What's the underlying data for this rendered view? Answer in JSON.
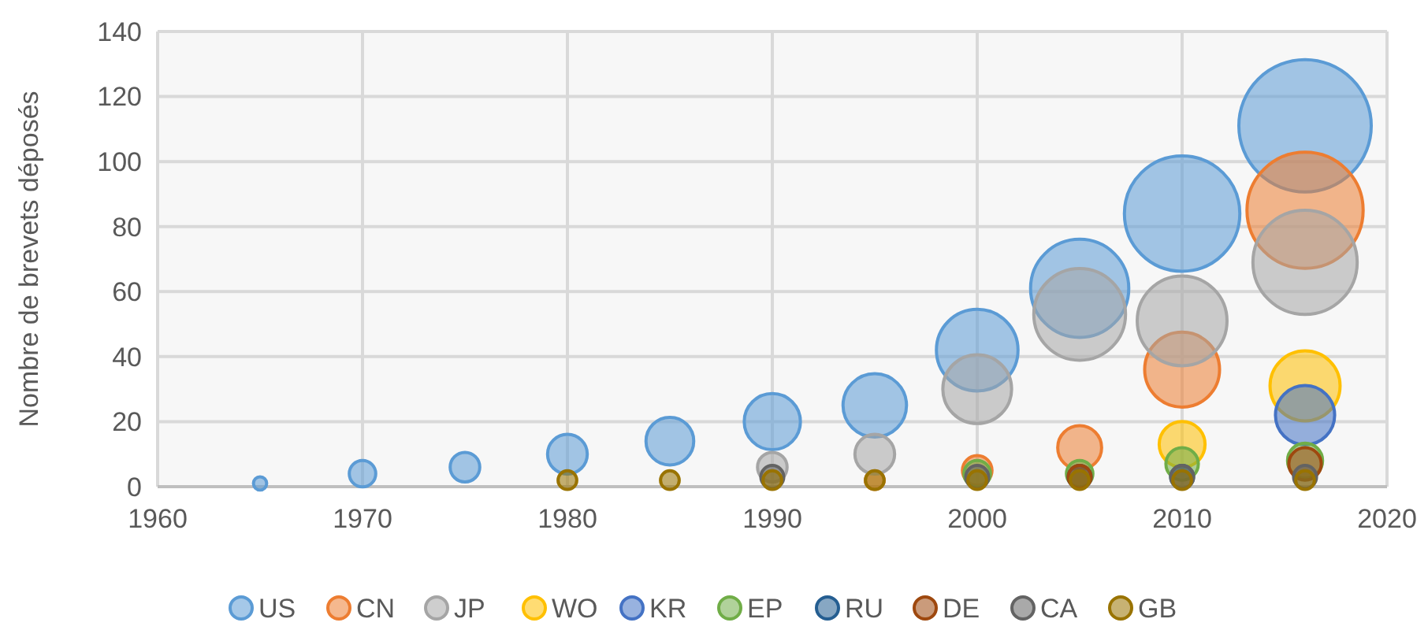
{
  "chart_data": {
    "type": "bubble",
    "ylabel": "Nombre de brevets déposés",
    "xlim": [
      1960,
      2020
    ],
    "xticks": [
      1960,
      1970,
      1980,
      1990,
      2000,
      2010,
      2020
    ],
    "ylim": [
      0,
      140
    ],
    "yticks": [
      0,
      20,
      40,
      60,
      80,
      100,
      120,
      140
    ],
    "grid": true,
    "legend": "bottom",
    "series": [
      {
        "name": "US",
        "color": "#5b9bd5",
        "x": [
          1965,
          1970,
          1975,
          1980,
          1985,
          1990,
          1995,
          2000,
          2005,
          2010,
          2016
        ],
        "values": [
          1,
          4,
          6,
          10,
          14,
          20,
          25,
          42,
          61,
          84,
          111
        ],
        "sizes": [
          0.01,
          0.04,
          0.05,
          0.09,
          0.13,
          0.18,
          0.23,
          0.38,
          0.55,
          0.76,
          1
        ]
      },
      {
        "name": "CN",
        "color": "#ed7d31",
        "x": [
          1995,
          2000,
          2005,
          2010,
          2016
        ],
        "values": [
          2,
          5,
          12,
          36,
          85
        ],
        "sizes": [
          0.02,
          0.05,
          0.11,
          0.32,
          0.77
        ]
      },
      {
        "name": "JP",
        "color": "#a5a5a5",
        "x": [
          1990,
          1995,
          2000,
          2005,
          2010,
          2016
        ],
        "values": [
          6,
          10,
          30,
          53,
          51,
          69
        ],
        "sizes": [
          0.05,
          0.09,
          0.27,
          0.48,
          0.46,
          0.62
        ]
      },
      {
        "name": "WO",
        "color": "#ffc000",
        "x": [
          2010,
          2016
        ],
        "values": [
          13,
          31
        ],
        "sizes": [
          0.12,
          0.28
        ]
      },
      {
        "name": "KR",
        "color": "#4472c4",
        "x": [
          2016
        ],
        "values": [
          22
        ],
        "sizes": [
          0.2
        ]
      },
      {
        "name": "EP",
        "color": "#70ad47",
        "x": [
          2000,
          2005,
          2010,
          2016
        ],
        "values": [
          4,
          4,
          7,
          8
        ],
        "sizes": [
          0.04,
          0.04,
          0.06,
          0.07
        ]
      },
      {
        "name": "RU",
        "color": "#255e91",
        "x": [
          2005,
          2010
        ],
        "values": [
          3,
          3
        ],
        "sizes": [
          0.03,
          0.03
        ]
      },
      {
        "name": "DE",
        "color": "#9e480e",
        "x": [
          2005,
          2016
        ],
        "values": [
          3,
          7
        ],
        "sizes": [
          0.03,
          0.06
        ]
      },
      {
        "name": "CA",
        "color": "#636363",
        "x": [
          1990,
          2000,
          2010,
          2016
        ],
        "values": [
          3,
          3,
          3,
          3
        ],
        "sizes": [
          0.03,
          0.03,
          0.03,
          0.03
        ]
      },
      {
        "name": "GB",
        "color": "#997300",
        "x": [
          1980,
          1985,
          1990,
          1995,
          2000,
          2005,
          2010,
          2016
        ],
        "values": [
          2,
          2,
          2,
          2,
          2,
          2,
          2,
          2
        ],
        "sizes": [
          0.02,
          0.02,
          0.02,
          0.02,
          0.02,
          0.02,
          0.02,
          0.02
        ]
      }
    ]
  }
}
